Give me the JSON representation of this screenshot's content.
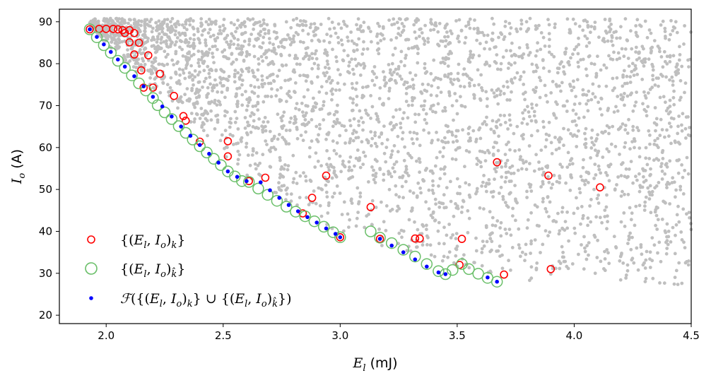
{
  "chart_data": {
    "type": "scatter",
    "title": "",
    "xlabel": {
      "main": "E",
      "sub": "l",
      "unit": " (mJ)"
    },
    "ylabel": {
      "main": "I",
      "sub": "o",
      "unit": " (A)"
    },
    "xlim": [
      1.8,
      4.5
    ],
    "ylim": [
      18,
      93
    ],
    "xticks": [
      "2.0",
      "2.5",
      "3.0",
      "3.5",
      "4.0",
      "4.5"
    ],
    "xtick_values": [
      2.0,
      2.5,
      3.0,
      3.5,
      4.0,
      4.5
    ],
    "yticks": [
      "20",
      "30",
      "40",
      "50",
      "60",
      "70",
      "80",
      "90"
    ],
    "ytick_values": [
      20,
      30,
      40,
      50,
      60,
      70,
      80,
      90
    ],
    "grid": false,
    "legend_position": "lower-left",
    "background_cloud": {
      "color": "#bfbfbf",
      "description_points": "dense grey cloud of candidate designs spanning the upper-right region",
      "region": {
        "x": [
          1.93,
          4.5
        ],
        "y": [
          26,
          91
        ]
      }
    },
    "series": [
      {
        "name": "{(El, Io)k}",
        "legend_tex": "k",
        "marker": "hollow-circle",
        "color": "#ff0000",
        "x": [
          1.93,
          1.97,
          2.0,
          2.03,
          2.05,
          2.07,
          2.08,
          2.1,
          2.12,
          2.14,
          2.1,
          2.12,
          2.15,
          2.18,
          2.16,
          2.23,
          2.2,
          2.29,
          2.33,
          2.34,
          2.4,
          2.52,
          2.52,
          2.61,
          2.68,
          2.84,
          2.88,
          2.94,
          3.0,
          3.13,
          3.17,
          3.32,
          3.34,
          3.51,
          3.52,
          3.67,
          3.7,
          3.89,
          3.9,
          4.11
        ],
        "y": [
          88.2,
          88.3,
          88.3,
          88.3,
          88.2,
          88.0,
          87.3,
          88.0,
          87.3,
          85.0,
          85.1,
          82.2,
          78.4,
          82.0,
          74.3,
          77.6,
          74.3,
          72.3,
          67.5,
          66.4,
          61.4,
          61.5,
          57.9,
          52.0,
          52.8,
          44.3,
          48.0,
          53.3,
          38.6,
          45.8,
          38.2,
          38.3,
          38.3,
          32.0,
          38.2,
          56.5,
          29.7,
          53.3,
          31.0,
          50.5
        ]
      },
      {
        "name": "{(El, Io)k̂}",
        "legend_tex": "k-hat",
        "marker": "large-hollow-circle",
        "color": "#6abf69",
        "x": [
          1.93,
          1.96,
          1.99,
          2.02,
          2.05,
          2.08,
          2.11,
          2.14,
          2.17,
          2.2,
          2.22,
          2.25,
          2.28,
          2.31,
          2.34,
          2.37,
          2.4,
          2.43,
          2.46,
          2.49,
          2.52,
          2.55,
          2.58,
          2.61,
          2.65,
          2.69,
          2.73,
          2.77,
          2.81,
          2.85,
          2.89,
          2.93,
          2.97,
          3.0,
          3.13,
          3.17,
          3.22,
          3.27,
          3.32,
          3.37,
          3.42,
          3.45,
          3.48,
          3.52,
          3.55,
          3.59,
          3.63,
          3.67
        ],
        "y": [
          88.2,
          86.3,
          84.4,
          82.6,
          80.7,
          79.0,
          77.2,
          75.3,
          73.6,
          71.8,
          70.1,
          68.4,
          66.8,
          65.1,
          63.5,
          61.9,
          60.3,
          58.8,
          57.3,
          55.8,
          54.3,
          53.1,
          52.0,
          51.8,
          50.2,
          48.7,
          47.3,
          45.9,
          44.7,
          43.6,
          42.4,
          41.1,
          39.8,
          38.6,
          40.0,
          38.5,
          37.2,
          35.6,
          34.0,
          32.2,
          30.5,
          29.8,
          30.8,
          32.2,
          31.0,
          29.9,
          28.9,
          28.0
        ]
      },
      {
        "name": "F({(El, Io)k} ∪ {(El, Io)k̂})",
        "legend_tex": "front",
        "marker": "small-filled-circle",
        "color": "#0000ff",
        "x": [
          1.93,
          1.96,
          1.99,
          2.02,
          2.05,
          2.08,
          2.12,
          2.16,
          2.2,
          2.24,
          2.28,
          2.32,
          2.36,
          2.4,
          2.44,
          2.48,
          2.52,
          2.56,
          2.6,
          2.66,
          2.7,
          2.74,
          2.78,
          2.82,
          2.86,
          2.9,
          2.94,
          2.98,
          3.0,
          3.17,
          3.22,
          3.27,
          3.32,
          3.37,
          3.42,
          3.45,
          3.63,
          3.67
        ],
        "y": [
          88.2,
          86.4,
          84.6,
          82.8,
          81.0,
          79.3,
          77.0,
          74.6,
          72.1,
          69.8,
          67.4,
          65.0,
          62.8,
          60.6,
          58.5,
          56.4,
          54.3,
          53.0,
          52.0,
          51.7,
          49.8,
          48.0,
          46.3,
          44.8,
          43.4,
          42.1,
          40.7,
          39.4,
          38.6,
          38.2,
          36.6,
          35.0,
          33.3,
          31.6,
          30.2,
          29.8,
          29.0,
          28.0
        ]
      }
    ]
  }
}
